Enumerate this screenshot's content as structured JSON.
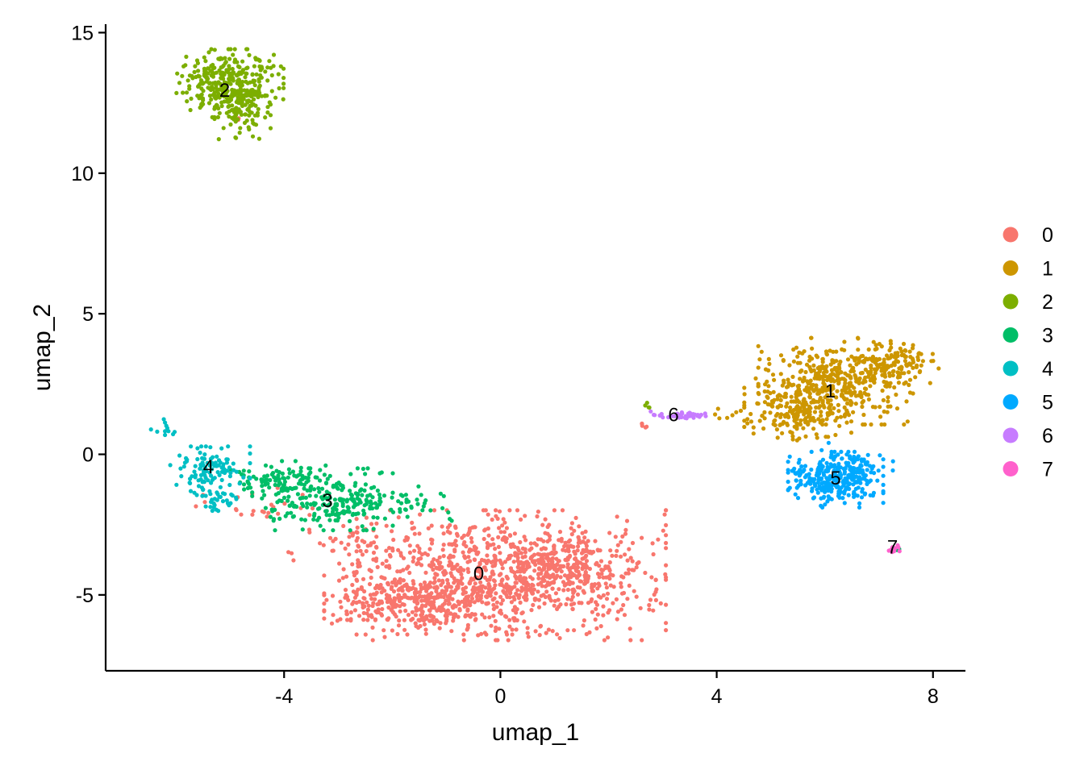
{
  "chart_data": {
    "type": "scatter",
    "title": "",
    "xlabel": "umap_1",
    "ylabel": "umap_2",
    "xlim": [
      -7.3,
      8.6
    ],
    "ylim": [
      -7.7,
      15.3
    ],
    "x_ticks": [
      -4,
      0,
      4,
      8
    ],
    "x_tick_labels": [
      "-4",
      "0",
      "4",
      "8"
    ],
    "y_ticks": [
      -5,
      0,
      5,
      10,
      15
    ],
    "y_tick_labels": [
      "-5",
      "0",
      "5",
      "10",
      "15"
    ],
    "grid": false,
    "legend_position": "right",
    "clusters": [
      {
        "name": "0",
        "color": "#F8766D",
        "n_points": 1500,
        "label_pos": [
          -0.4,
          -4.3
        ],
        "blobs": [
          {
            "cx": 0.2,
            "cy": -4.3,
            "sx": 1.3,
            "sy": 1.05,
            "w": 0.55
          },
          {
            "cx": -1.5,
            "cy": -5.2,
            "sx": 0.8,
            "sy": 0.55,
            "w": 0.25
          },
          {
            "cx": 1.2,
            "cy": -3.9,
            "sx": 0.4,
            "sy": 0.45,
            "w": 0.1
          },
          {
            "cx": -2.6,
            "cy": -3.3,
            "sx": 0.6,
            "sy": 0.5,
            "w": 0.04
          },
          {
            "cx": -4.3,
            "cy": -1.9,
            "sx": 0.7,
            "sy": 0.35,
            "w": 0.015
          },
          {
            "cx": 2.65,
            "cy": 1.05,
            "sx": 0.04,
            "sy": 0.08,
            "w": 0.003
          },
          {
            "cx": -4.9,
            "cy": 11.9,
            "sx": 0.05,
            "sy": 0.05,
            "w": 0.002
          }
        ]
      },
      {
        "name": "1",
        "color": "#CD9600",
        "n_points": 700,
        "label_pos": [
          6.1,
          2.2
        ],
        "blobs": [
          {
            "cx": 6.2,
            "cy": 2.6,
            "sx": 0.65,
            "sy": 0.7,
            "w": 0.5
          },
          {
            "cx": 5.5,
            "cy": 1.6,
            "sx": 0.45,
            "sy": 0.5,
            "w": 0.3
          },
          {
            "cx": 7.2,
            "cy": 3.2,
            "sx": 0.45,
            "sy": 0.35,
            "w": 0.2
          },
          {
            "cx": 4.3,
            "cy": 1.4,
            "sx": 0.15,
            "sy": 0.1,
            "w": 0.01
          }
        ]
      },
      {
        "name": "2",
        "color": "#7CAE00",
        "n_points": 420,
        "label_pos": [
          -5.1,
          12.9
        ],
        "blobs": [
          {
            "cx": -5.0,
            "cy": 13.2,
            "sx": 0.45,
            "sy": 0.55,
            "w": 0.8
          },
          {
            "cx": -4.8,
            "cy": 12.2,
            "sx": 0.25,
            "sy": 0.45,
            "w": 0.2
          },
          {
            "cx": 2.7,
            "cy": 1.7,
            "sx": 0.04,
            "sy": 0.06,
            "w": 0.01
          }
        ]
      },
      {
        "name": "3",
        "color": "#00BE67",
        "n_points": 360,
        "label_pos": [
          -3.2,
          -1.7
        ],
        "blobs": [
          {
            "cx": -3.2,
            "cy": -1.6,
            "sx": 0.55,
            "sy": 0.5,
            "w": 0.55
          },
          {
            "cx": -4.1,
            "cy": -0.9,
            "sx": 0.4,
            "sy": 0.3,
            "w": 0.25
          },
          {
            "cx": -2.0,
            "cy": -1.8,
            "sx": 0.5,
            "sy": 0.3,
            "w": 0.17
          },
          {
            "cx": 7.35,
            "cy": -3.4,
            "sx": 0.04,
            "sy": 0.04,
            "w": 0.01
          }
        ]
      },
      {
        "name": "4",
        "color": "#00BFC4",
        "n_points": 150,
        "label_pos": [
          -5.4,
          -0.5
        ],
        "blobs": [
          {
            "cx": -5.4,
            "cy": -0.6,
            "sx": 0.35,
            "sy": 0.4,
            "w": 0.75
          },
          {
            "cx": -5.2,
            "cy": -1.7,
            "sx": 0.2,
            "sy": 0.2,
            "w": 0.18
          },
          {
            "cx": -6.2,
            "cy": 0.9,
            "sx": 0.12,
            "sy": 0.2,
            "w": 0.07
          }
        ]
      },
      {
        "name": "5",
        "color": "#00A9FF",
        "n_points": 320,
        "label_pos": [
          6.2,
          -0.9
        ],
        "blobs": [
          {
            "cx": 6.2,
            "cy": -0.9,
            "sx": 0.4,
            "sy": 0.45,
            "w": 0.85
          },
          {
            "cx": 6.6,
            "cy": -0.3,
            "sx": 0.3,
            "sy": 0.35,
            "w": 0.15
          }
        ]
      },
      {
        "name": "6",
        "color": "#C77CFF",
        "n_points": 40,
        "label_pos": [
          3.2,
          1.35
        ],
        "blobs": [
          {
            "cx": 3.3,
            "cy": 1.4,
            "sx": 0.3,
            "sy": 0.06,
            "w": 1.0
          }
        ]
      },
      {
        "name": "7",
        "color": "#FF61CC",
        "n_points": 12,
        "label_pos": [
          7.25,
          -3.35
        ],
        "blobs": [
          {
            "cx": 7.25,
            "cy": -3.35,
            "sx": 0.06,
            "sy": 0.08,
            "w": 1.0
          }
        ]
      }
    ]
  }
}
